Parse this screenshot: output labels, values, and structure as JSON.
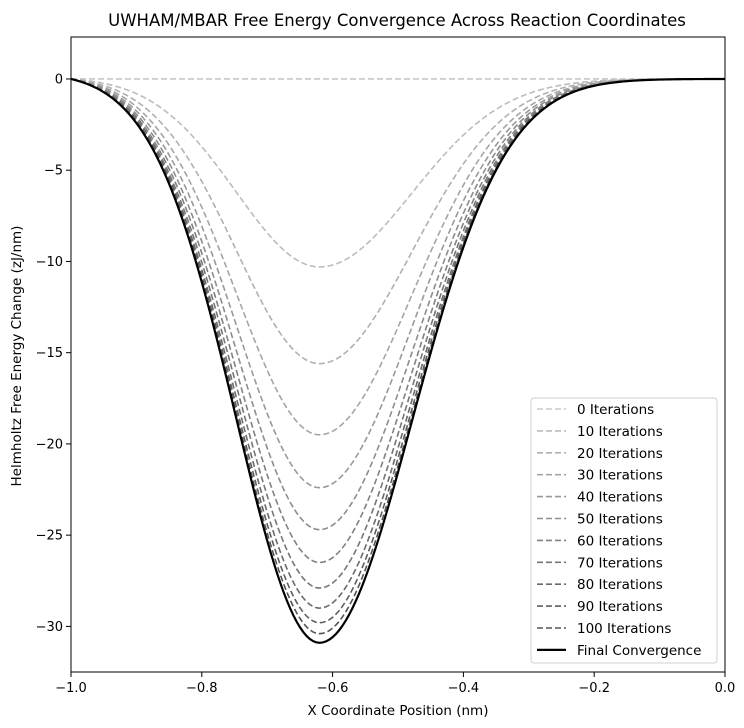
{
  "chart_data": {
    "type": "line",
    "title": "UWHAM/MBAR Free Energy Convergence Across Reaction Coordinates",
    "xlabel": "X Coordinate Position (nm)",
    "ylabel": "Helmholtz Free Energy Change (zJ/nm)",
    "xlim": [
      -1.0,
      0.0
    ],
    "ylim": [
      -32.5,
      2.3
    ],
    "x_ticks": [
      -1.0,
      -0.8,
      -0.6,
      -0.4,
      -0.2,
      0.0
    ],
    "x_tick_labels": [
      "−1.0",
      "−0.8",
      "−0.6",
      "−0.4",
      "−0.2",
      "0.0"
    ],
    "y_ticks": [
      0,
      -5,
      -10,
      -15,
      -20,
      -25,
      -30
    ],
    "y_tick_labels": [
      "0",
      "−5",
      "−10",
      "−15",
      "−20",
      "−25",
      "−30"
    ],
    "grid": false,
    "legend_position": "lower-right",
    "minimum_x": -0.62,
    "series": [
      {
        "name": "0 Iterations",
        "min_y": 0.0,
        "color": "#c8c8c8",
        "style": "dashed"
      },
      {
        "name": "10 Iterations",
        "min_y": -10.3,
        "color": "#bcbcbc",
        "style": "dashed"
      },
      {
        "name": "20 Iterations",
        "min_y": -15.6,
        "color": "#b0b0b0",
        "style": "dashed"
      },
      {
        "name": "30 Iterations",
        "min_y": -19.5,
        "color": "#a5a5a5",
        "style": "dashed"
      },
      {
        "name": "40 Iterations",
        "min_y": -22.4,
        "color": "#999999",
        "style": "dashed"
      },
      {
        "name": "50 Iterations",
        "min_y": -24.7,
        "color": "#8d8d8d",
        "style": "dashed"
      },
      {
        "name": "60 Iterations",
        "min_y": -26.5,
        "color": "#818181",
        "style": "dashed"
      },
      {
        "name": "70 Iterations",
        "min_y": -27.9,
        "color": "#767676",
        "style": "dashed"
      },
      {
        "name": "80 Iterations",
        "min_y": -29.0,
        "color": "#6a6a6a",
        "style": "dashed"
      },
      {
        "name": "90 Iterations",
        "min_y": -29.8,
        "color": "#5e5e5e",
        "style": "dashed"
      },
      {
        "name": "100 Iterations",
        "min_y": -30.4,
        "color": "#535353",
        "style": "dashed"
      },
      {
        "name": "Final Convergence",
        "min_y": -30.9,
        "color": "#000000",
        "style": "solid"
      }
    ]
  }
}
